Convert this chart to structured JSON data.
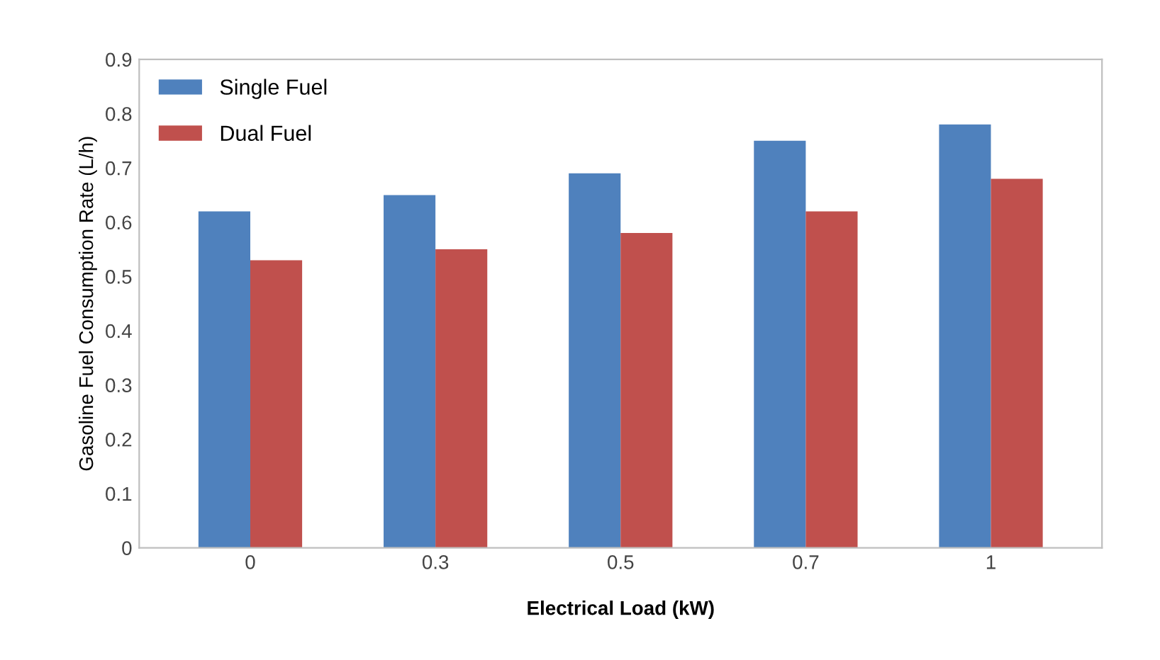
{
  "chart_data": {
    "type": "bar",
    "xlabel": "Electrical Load (kW)",
    "ylabel": "Gasoline Fuel Consumption Rate (L/h)",
    "categories": [
      "0",
      "0.3",
      "0.5",
      "0.7",
      "1"
    ],
    "series": [
      {
        "name": "Single Fuel",
        "color": "#4f81bd",
        "values": [
          0.62,
          0.65,
          0.69,
          0.75,
          0.78
        ]
      },
      {
        "name": "Dual Fuel",
        "color": "#c0504d",
        "values": [
          0.53,
          0.55,
          0.58,
          0.62,
          0.68
        ]
      }
    ],
    "ylim": [
      0,
      0.9
    ],
    "yticks": [
      0,
      0.1,
      0.2,
      0.3,
      0.4,
      0.5,
      0.6,
      0.7,
      0.8,
      0.9
    ],
    "grid": false,
    "legend": "top left"
  }
}
